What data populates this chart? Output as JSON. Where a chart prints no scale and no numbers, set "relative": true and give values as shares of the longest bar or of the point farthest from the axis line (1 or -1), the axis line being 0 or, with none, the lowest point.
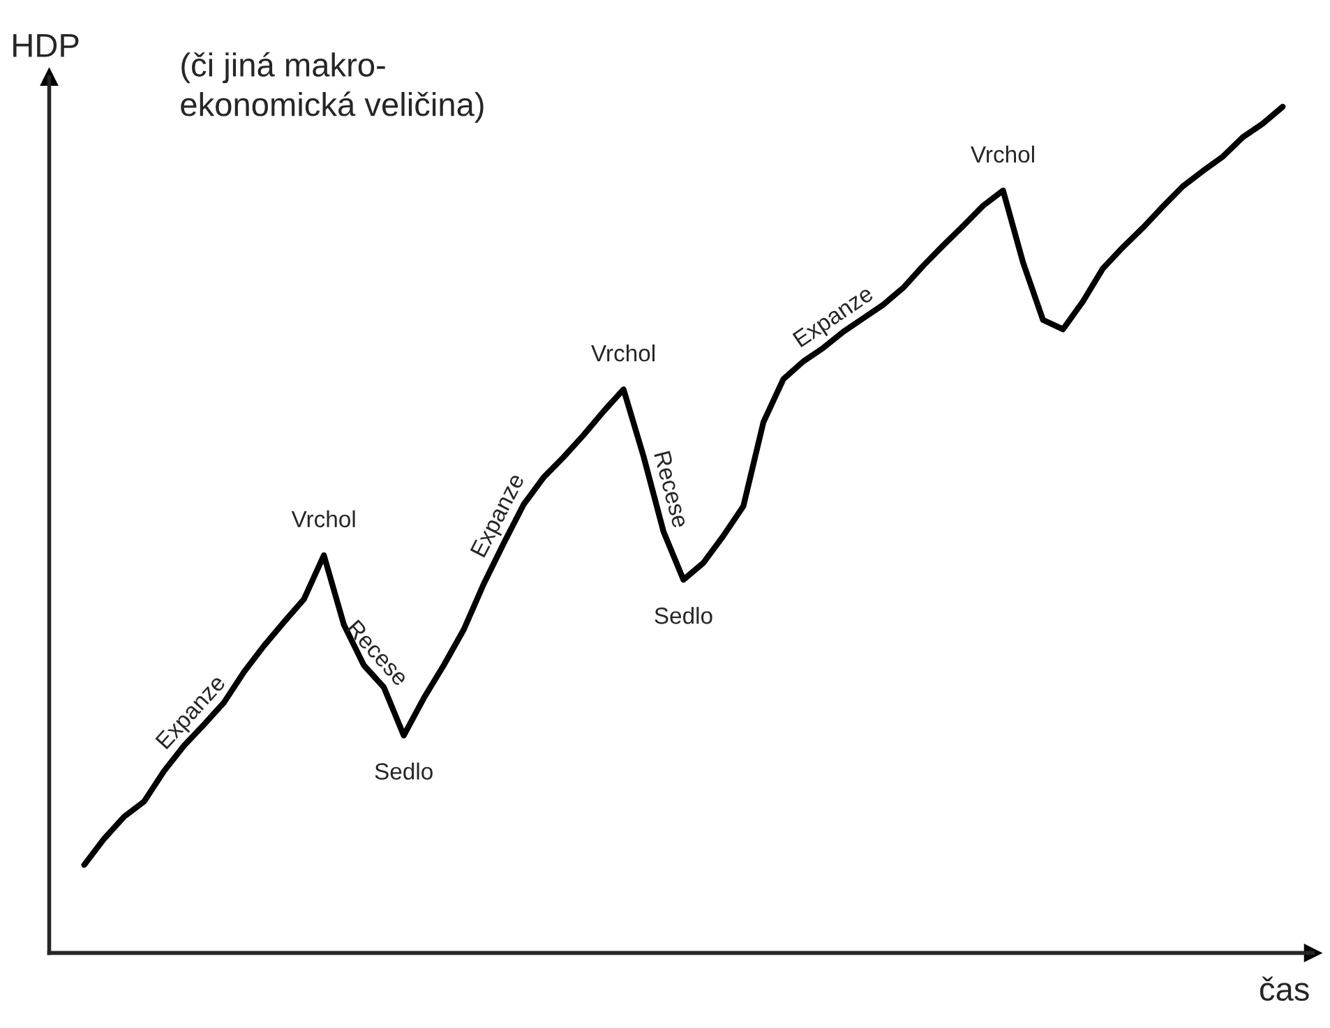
{
  "chart_data": {
    "type": "line",
    "relative": true,
    "ylabel": "HDP",
    "xlabel": "čas",
    "categories": [
      null,
      null,
      null,
      null,
      null,
      null,
      null,
      null,
      null,
      null,
      null,
      null,
      null,
      null,
      null,
      null,
      null,
      null,
      null,
      null,
      null,
      null,
      null,
      null,
      null,
      null,
      null,
      null,
      null,
      null,
      null,
      null,
      null,
      null,
      null,
      null,
      null,
      null,
      null,
      null,
      null,
      null,
      null,
      null,
      null,
      null,
      null,
      null,
      null,
      null,
      null,
      null,
      null,
      null,
      null,
      null,
      null,
      null,
      null,
      null,
      null
    ],
    "annotations": [
      "(či jiná makro-\nekonomická veličina)",
      "Expanze",
      {
        "text": "Vrchol",
        "y": 0.47
      },
      "Recese",
      {
        "text": "Sedlo",
        "y": 0.257
      },
      "Expanze",
      {
        "text": "Vrchol",
        "y": 0.666
      },
      "Recese",
      {
        "text": "Sedlo",
        "y": 0.441
      },
      "Expanze",
      {
        "text": "Vrchol",
        "y": 0.901
      }
    ],
    "series": [
      {
        "color": "#000000",
        "values": [
          0.104,
          0.135,
          0.161,
          0.179,
          0.215,
          0.245,
          0.27,
          0.296,
          0.332,
          0.363,
          0.391,
          0.418,
          0.47,
          0.388,
          0.34,
          0.314,
          0.257,
          0.301,
          0.34,
          0.382,
          0.436,
          0.484,
          0.53,
          0.562,
          0.586,
          0.612,
          0.64,
          0.666,
          0.587,
          0.498,
          0.441,
          0.461,
          0.493,
          0.528,
          0.627,
          0.678,
          0.699,
          0.715,
          0.734,
          0.75,
          0.766,
          0.786,
          0.812,
          0.836,
          0.859,
          0.883,
          0.901,
          0.816,
          0.748,
          0.737,
          0.77,
          0.809,
          0.834,
          0.857,
          0.882,
          0.906,
          0.924,
          0.941,
          0.964,
          0.98,
          1.0
        ]
      }
    ]
  }
}
